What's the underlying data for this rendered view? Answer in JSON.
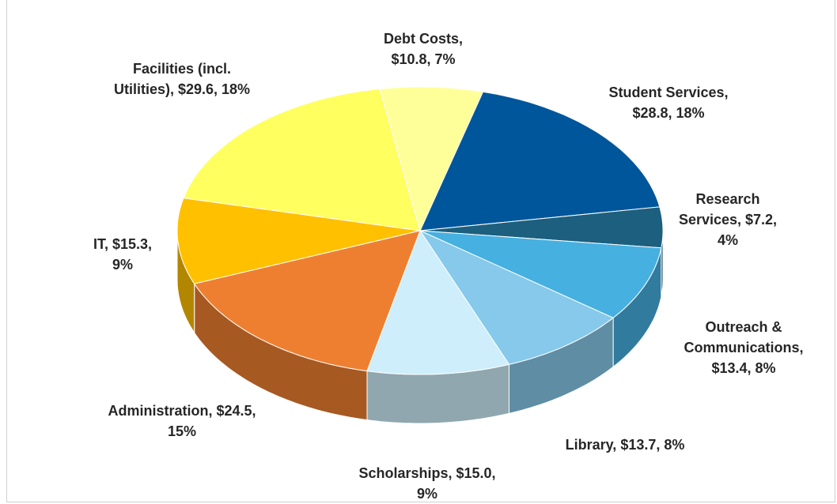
{
  "chart_data": {
    "type": "pie3d",
    "values": [
      28.8,
      7.2,
      13.4,
      13.7,
      15.0,
      24.5,
      15.3,
      29.6,
      10.8
    ],
    "value_labels": [
      "Student Services, $28.8, 18%",
      "Research Services, $7.2, 4%",
      "Outreach & Communications, $13.4, 8%",
      "Library, $13.7, 8%",
      "Scholarships, $15.0, 9%",
      "Administration, $24.5, 15%",
      "IT, $15.3, 9%",
      "Facilities (incl. Utilities), $29.6, 18%",
      "Debt Costs, $10.8, 7%"
    ],
    "colors": [
      "#00569a",
      "#1c5f7e",
      "#46b0e1",
      "#86c9ea",
      "#cdeefa",
      "#ef7f30",
      "#ffc000",
      "#ffff5f",
      "#ffff99"
    ]
  }
}
